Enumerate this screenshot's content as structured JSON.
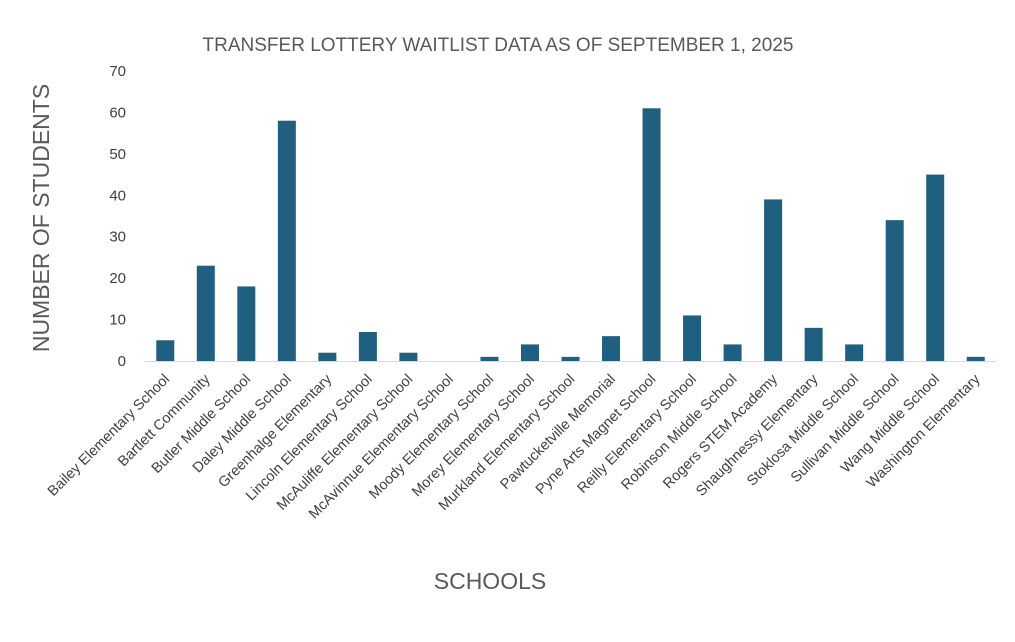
{
  "chart_data": {
    "type": "bar",
    "title": "TRANSFER LOTTERY WAITLIST DATA AS OF SEPTEMBER 1, 2025",
    "xlabel": "SCHOOLS",
    "ylabel": "NUMBER OF STUDENTS",
    "ylim": [
      0,
      70
    ],
    "yticks": [
      0,
      10,
      20,
      30,
      40,
      50,
      60,
      70
    ],
    "grid": false,
    "legend": "none",
    "bar_color": "#1f5f7f",
    "categories": [
      "Bailey Elementary School",
      "Bartlett Community",
      "Butler Middle School",
      "Daley Middle School",
      "Greenhalge Elementary",
      "Lincoln Elementary School",
      "McAuliffe Elementary School",
      "McAvinnue Elementary School",
      "Moody Elementary School",
      "Morey Elementary School",
      "Murkland Elementary School",
      "Pawtucketville Memorial",
      "Pyne Arts Magnet School",
      "Reilly Elementary School",
      "Robinson Middle School",
      "Rogers STEM Academy",
      "Shaughnessy Elementary",
      "Stoklosa Middle School",
      "Sullivan Middle School",
      "Wang Middle School",
      "Washington Elementary"
    ],
    "values": [
      5,
      23,
      18,
      58,
      2,
      7,
      2,
      0,
      1,
      4,
      1,
      6,
      61,
      11,
      4,
      39,
      8,
      4,
      34,
      45,
      1
    ]
  }
}
